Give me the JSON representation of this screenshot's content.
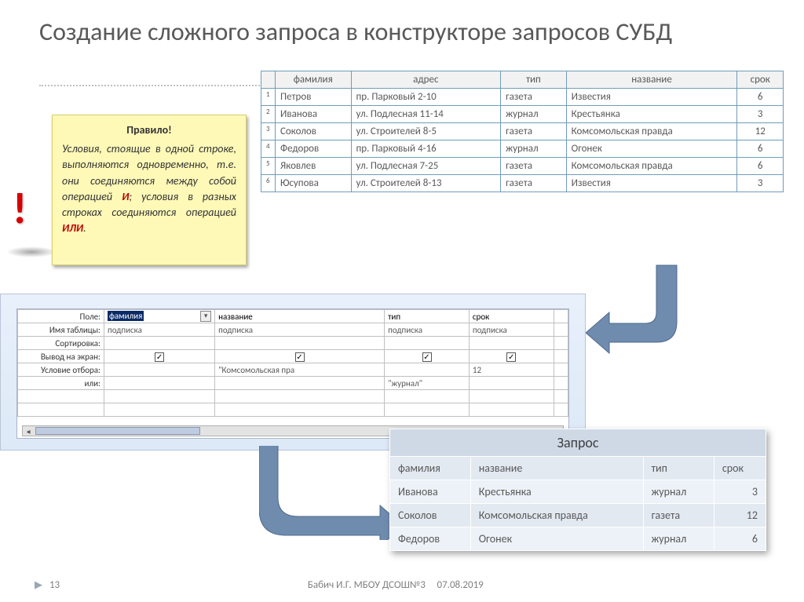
{
  "title": "Создание сложного запроса в конструкторе запросов СУБД",
  "note": {
    "title": "Правило!",
    "body_1": "Условия, стоящие в одной строке, выполняются одновременно, т.е. они соединяются между собой операцией ",
    "and": "И",
    "body_2": "; условия в разных строках соединяются операцией ",
    "or": "ИЛИ",
    "body_3": "."
  },
  "main_table": {
    "headers": [
      "фамилия",
      "адрес",
      "тип",
      "название",
      "срок"
    ],
    "rows": [
      {
        "n": "1",
        "c": [
          "Петров",
          "пр. Парковый 2-10",
          "газета",
          "Известия",
          "6"
        ]
      },
      {
        "n": "2",
        "c": [
          "Иванова",
          "ул. Подлесная 11-14",
          "журнал",
          "Крестьянка",
          "3"
        ]
      },
      {
        "n": "3",
        "c": [
          "Соколов",
          "ул. Строителей 8-5",
          "газета",
          "Комсомольская правда",
          "12"
        ]
      },
      {
        "n": "4",
        "c": [
          "Федоров",
          "пр. Парковый 4-16",
          "журнал",
          "Огонек",
          "6"
        ]
      },
      {
        "n": "5",
        "c": [
          "Яковлев",
          "ул. Подлесная 7-25",
          "газета",
          "Комсомольская правда",
          "6"
        ]
      },
      {
        "n": "6",
        "c": [
          "Юсупова",
          "ул. Строителей 8-13",
          "газета",
          "Известия",
          "3"
        ]
      }
    ]
  },
  "qb": {
    "row_labels": [
      "Поле:",
      "Имя таблицы:",
      "Сортировка:",
      "Вывод на экран:",
      "Условие отбора:",
      "или:"
    ],
    "fields": [
      "фамилия",
      "название",
      "тип",
      "срок"
    ],
    "table_name": "подписка",
    "criteria": [
      "",
      "\"Комсомольская пра",
      "",
      "12"
    ],
    "or": [
      "",
      "",
      "\"журнал\"",
      ""
    ]
  },
  "result": {
    "caption": "Запрос",
    "headers": [
      "фамилия",
      "название",
      "тип",
      "срок"
    ],
    "rows": [
      [
        "Иванова",
        "Крестьянка",
        "журнал",
        "3"
      ],
      [
        "Соколов",
        "Комсомольская правда",
        "газета",
        "12"
      ],
      [
        "Федоров",
        "Огонек",
        "журнал",
        "6"
      ]
    ]
  },
  "footer": {
    "page": "13",
    "author": "Бабич И.Г. МБОУ ДСОШ№3",
    "date": "07.08.2019"
  },
  "colors": {
    "accent_arrow": "#6f8caf",
    "table_border": "#6f9db8",
    "note_bg": "#fff9b8"
  }
}
